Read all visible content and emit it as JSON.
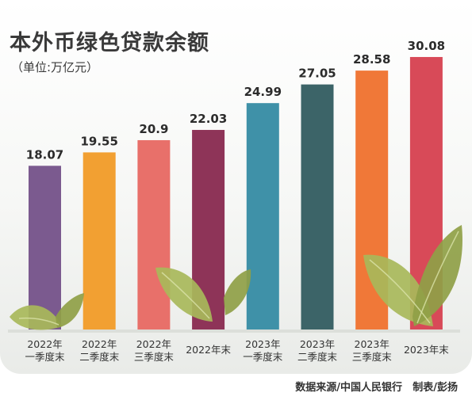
{
  "header": {
    "title": "本外币绿色贷款余额",
    "unit": "（单位:万亿元）"
  },
  "footer": {
    "source": "数据来源/中国人民银行",
    "credit": "制表/彭扬"
  },
  "colors": {
    "bars": [
      "#7b5a8f",
      "#f2a032",
      "#e8706a",
      "#8e3458",
      "#3f91a8",
      "#3c6468",
      "#f07838",
      "#d84a58"
    ],
    "leaf": "#a8b85a",
    "leaf_dark": "#8fa046"
  },
  "chart_data": {
    "type": "bar",
    "title": "本外币绿色贷款余额",
    "ylabel": "",
    "ylim": [
      0,
      32
    ],
    "categories": [
      [
        "2022年",
        "一季度末"
      ],
      [
        "2022年",
        "二季度末"
      ],
      [
        "2022年",
        "三季度末"
      ],
      [
        "2022年末"
      ],
      [
        "2023年",
        "一季度末"
      ],
      [
        "2023年",
        "二季度末"
      ],
      [
        "2023年",
        "三季度末"
      ],
      [
        "2023年末"
      ]
    ],
    "values": [
      18.07,
      19.55,
      20.9,
      22.03,
      24.99,
      27.05,
      28.58,
      30.08
    ],
    "value_labels": [
      "18.07",
      "19.55",
      "20.9",
      "22.03",
      "24.99",
      "27.05",
      "28.58",
      "30.08"
    ]
  }
}
